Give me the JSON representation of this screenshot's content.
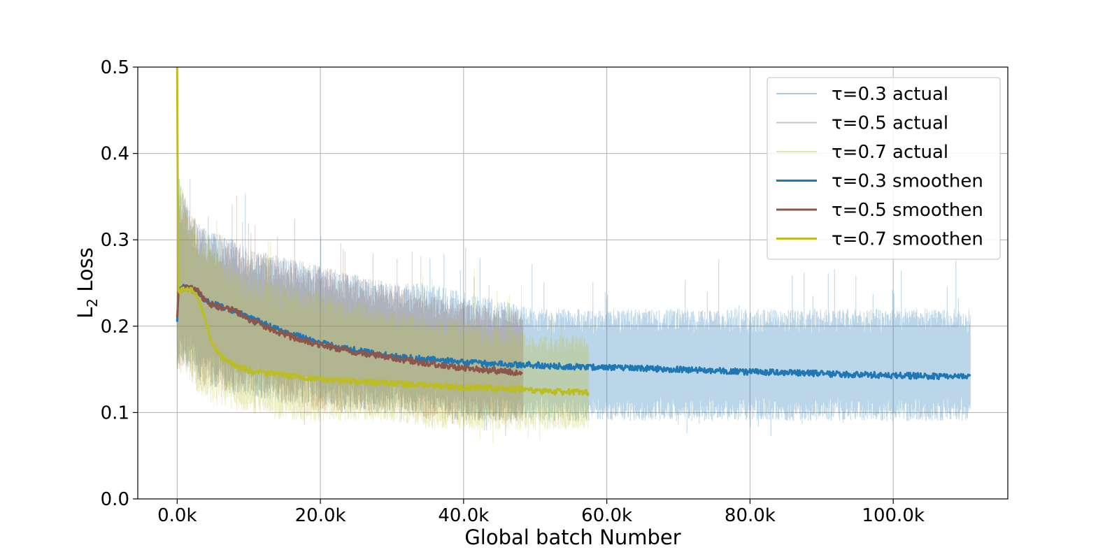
{
  "chart_data": {
    "type": "line",
    "title": "",
    "xlabel": "Global batch Number",
    "ylabel_main": "L",
    "ylabel_sub": "2",
    "ylabel_rest": " Loss",
    "xlim": [
      -5500,
      116000
    ],
    "ylim": [
      0.0,
      0.5
    ],
    "xticks": [
      0,
      20000,
      40000,
      60000,
      80000,
      100000
    ],
    "xtick_labels": [
      "0.0k",
      "20.0k",
      "40.0k",
      "60.0k",
      "80.0k",
      "100.0k"
    ],
    "yticks": [
      0.0,
      0.1,
      0.2,
      0.3,
      0.4,
      0.5
    ],
    "ytick_labels": [
      "0.0",
      "0.1",
      "0.2",
      "0.3",
      "0.4",
      "0.5"
    ],
    "grid": true,
    "legend_position": "upper right",
    "series": [
      {
        "name": "τ=0.3 actual",
        "kind": "actual",
        "color": "#1f77b4",
        "opacity": 0.3,
        "x": [
          0,
          1000,
          2000,
          3000,
          5000,
          8000,
          10000,
          15000,
          20000,
          25000,
          30000,
          35000,
          40000,
          45000,
          50000,
          55000,
          60000,
          70000,
          80000,
          90000,
          100000,
          110800
        ],
        "lower": [
          0.15,
          0.15,
          0.15,
          0.14,
          0.13,
          0.12,
          0.12,
          0.11,
          0.11,
          0.1,
          0.1,
          0.1,
          0.09,
          0.09,
          0.09,
          0.09,
          0.09,
          0.09,
          0.09,
          0.09,
          0.09,
          0.09
        ],
        "upper": [
          0.38,
          0.35,
          0.33,
          0.32,
          0.31,
          0.3,
          0.29,
          0.28,
          0.27,
          0.26,
          0.25,
          0.25,
          0.24,
          0.23,
          0.22,
          0.22,
          0.22,
          0.22,
          0.22,
          0.22,
          0.22,
          0.22
        ]
      },
      {
        "name": "τ=0.5 actual",
        "kind": "actual",
        "color": "#8c564b",
        "opacity": 0.28,
        "x": [
          0,
          1000,
          2000,
          3000,
          5000,
          8000,
          10000,
          15000,
          20000,
          25000,
          30000,
          35000,
          40000,
          45000,
          48300
        ],
        "lower": [
          0.14,
          0.15,
          0.14,
          0.13,
          0.13,
          0.12,
          0.12,
          0.11,
          0.1,
          0.1,
          0.1,
          0.09,
          0.09,
          0.09,
          0.09
        ],
        "upper": [
          0.37,
          0.35,
          0.33,
          0.32,
          0.31,
          0.3,
          0.29,
          0.28,
          0.27,
          0.26,
          0.25,
          0.24,
          0.23,
          0.22,
          0.22
        ]
      },
      {
        "name": "τ=0.7 actual",
        "kind": "actual",
        "color": "#bcbd22",
        "opacity": 0.28,
        "x": [
          0,
          1000,
          2000,
          3000,
          5000,
          8000,
          10000,
          15000,
          20000,
          25000,
          30000,
          35000,
          40000,
          45000,
          50000,
          57500
        ],
        "lower": [
          0.15,
          0.14,
          0.13,
          0.12,
          0.11,
          0.1,
          0.1,
          0.09,
          0.09,
          0.09,
          0.09,
          0.08,
          0.08,
          0.08,
          0.08,
          0.08
        ],
        "upper": [
          0.38,
          0.36,
          0.33,
          0.31,
          0.29,
          0.27,
          0.26,
          0.25,
          0.24,
          0.23,
          0.22,
          0.21,
          0.21,
          0.2,
          0.19,
          0.19
        ]
      },
      {
        "name": "τ=0.3 smoothen",
        "kind": "smooth",
        "color": "#1f77b4",
        "x": [
          0,
          200,
          1000,
          2000,
          3000,
          4000,
          5000,
          8000,
          10000,
          15000,
          20000,
          25000,
          30000,
          35000,
          40000,
          45000,
          50000,
          55000,
          60000,
          70000,
          80000,
          90000,
          100000,
          110800
        ],
        "y": [
          0.205,
          0.245,
          0.245,
          0.243,
          0.238,
          0.23,
          0.226,
          0.218,
          0.21,
          0.193,
          0.181,
          0.172,
          0.165,
          0.162,
          0.158,
          0.156,
          0.155,
          0.153,
          0.152,
          0.15,
          0.147,
          0.145,
          0.143,
          0.141
        ]
      },
      {
        "name": "τ=0.5 smoothen",
        "kind": "smooth",
        "color": "#8c564b",
        "x": [
          0,
          200,
          1000,
          2000,
          3000,
          4000,
          5000,
          8000,
          10000,
          15000,
          20000,
          25000,
          30000,
          35000,
          40000,
          45000,
          48300
        ],
        "y": [
          0.21,
          0.24,
          0.244,
          0.245,
          0.24,
          0.228,
          0.224,
          0.218,
          0.208,
          0.19,
          0.178,
          0.17,
          0.163,
          0.157,
          0.151,
          0.148,
          0.146
        ]
      },
      {
        "name": "τ=0.7 smoothen",
        "kind": "smooth",
        "color": "#bcbd22",
        "x": [
          0,
          150,
          500,
          1000,
          2000,
          3000,
          4000,
          5000,
          6000,
          8000,
          10000,
          15000,
          20000,
          25000,
          30000,
          35000,
          40000,
          45000,
          48000,
          50000,
          57500
        ],
        "y": [
          0.5,
          0.24,
          0.24,
          0.243,
          0.242,
          0.232,
          0.205,
          0.178,
          0.165,
          0.155,
          0.149,
          0.143,
          0.139,
          0.136,
          0.134,
          0.131,
          0.129,
          0.128,
          0.127,
          0.125,
          0.123
        ]
      }
    ]
  }
}
